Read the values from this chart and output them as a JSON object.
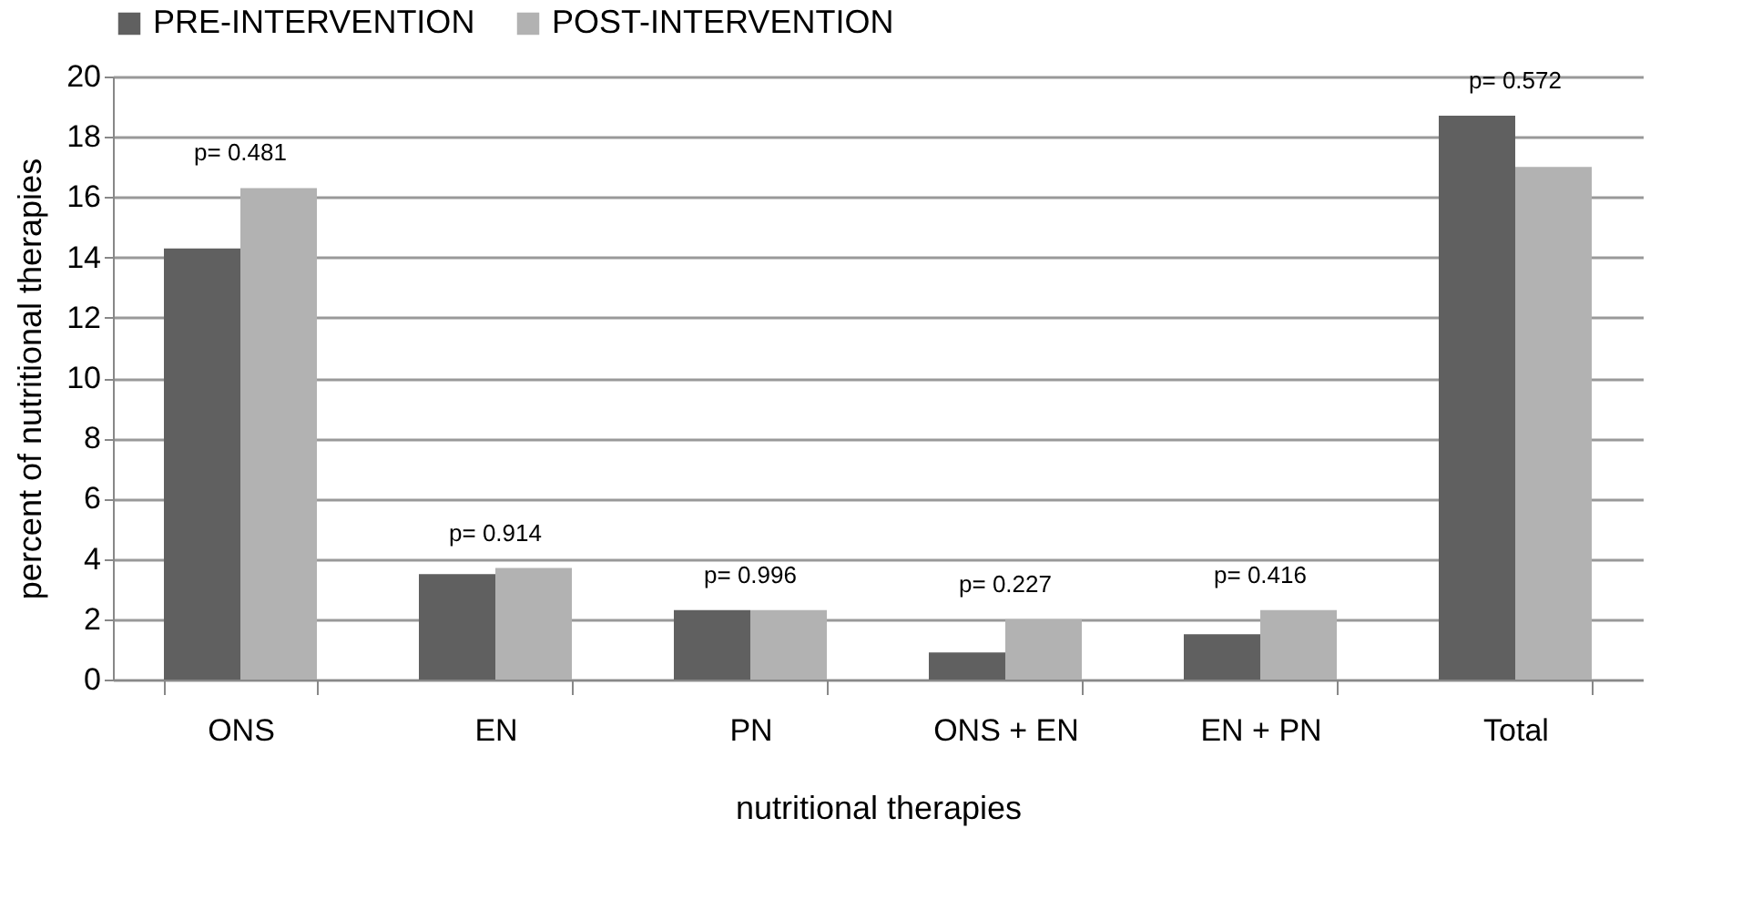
{
  "chart_data": {
    "type": "bar",
    "xlabel": "nutritional therapies",
    "ylabel": "percent of nutritional therapies",
    "categories": [
      "ONS",
      "EN",
      "PN",
      "ONS + EN",
      "EN + PN",
      "Total"
    ],
    "series": [
      {
        "name": "PRE-INTERVENTION",
        "color": "#606060",
        "values": [
          14.3,
          3.5,
          2.3,
          0.9,
          1.5,
          18.7
        ]
      },
      {
        "name": "POST-INTERVENTION",
        "color": "#b2b2b2",
        "values": [
          16.3,
          3.7,
          2.3,
          2.0,
          2.3,
          17.0
        ]
      }
    ],
    "ylim": [
      0,
      20
    ],
    "yticks": [
      0,
      2,
      4,
      6,
      8,
      10,
      12,
      14,
      16,
      18,
      20
    ],
    "grid": "y",
    "legend": "top",
    "annotations": [
      {
        "text": "p= 0.481",
        "x": "ONS",
        "y": 16.3
      },
      {
        "text": "p= 0.914",
        "x": "EN",
        "y": 3.7
      },
      {
        "text": "p= 0.996",
        "x": "PN",
        "y": 2.3
      },
      {
        "text": "p= 0.227",
        "x": "ONS + EN",
        "y": 2.0
      },
      {
        "text": "p= 0.416",
        "x": "EN + PN",
        "y": 2.3
      },
      {
        "text": "p= 0.572",
        "x": "Total",
        "y": 18.7
      }
    ]
  }
}
